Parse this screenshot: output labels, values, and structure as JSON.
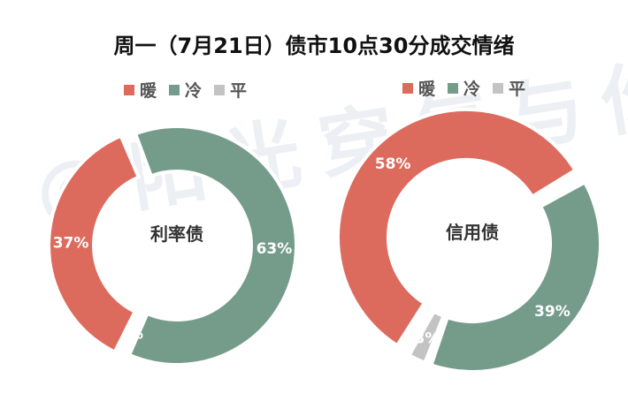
{
  "title": "周一（7月21日）债市10点30分成交情绪",
  "watermark": "@阳光穿气与你",
  "legend": [
    {
      "label": "暖",
      "color": "#dc6b5e"
    },
    {
      "label": "冷",
      "color": "#759c8a"
    },
    {
      "label": "平",
      "color": "#c3c3c3"
    }
  ],
  "chart_data": [
    {
      "type": "pie",
      "center_label": "利率债",
      "categories": [
        "暖",
        "冷",
        "平"
      ],
      "values": [
        37,
        63,
        0
      ],
      "data_labels": [
        "37%",
        "63%",
        "%"
      ],
      "colors": [
        "#dc6b5e",
        "#759c8a",
        "#c3c3c3"
      ]
    },
    {
      "type": "pie",
      "center_label": "信用债",
      "categories": [
        "暖",
        "冷",
        "平"
      ],
      "values": [
        58,
        39,
        3
      ],
      "data_labels": [
        "58%",
        "39%",
        "3%"
      ],
      "colors": [
        "#dc6b5e",
        "#759c8a",
        "#c3c3c3"
      ]
    }
  ]
}
